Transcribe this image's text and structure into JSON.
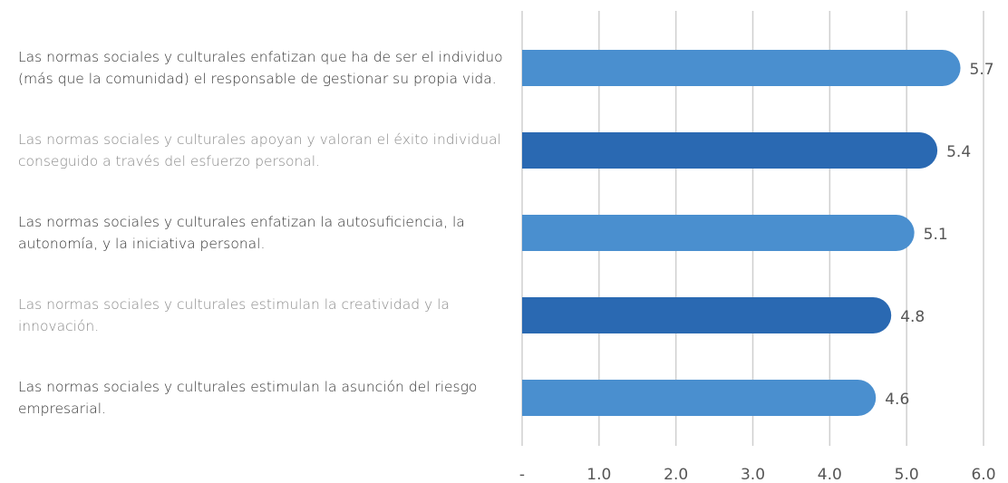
{
  "chart_data": {
    "type": "bar",
    "orientation": "horizontal",
    "categories": [
      "Las normas sociales y culturales enfatizan que ha de ser el individuo (más que la comunidad) el responsable de gestionar su propia vida.",
      "Las normas sociales y culturales apoyan y valoran el éxito individual conseguido a través del esfuerzo personal.",
      "Las normas sociales y culturales enfatizan la autosuficiencia, la autonomía, y la iniciativa personal.",
      "Las normas sociales y culturales estimulan la creatividad y la innovación.",
      "Las normas sociales y culturales estimulan la asunción del riesgo empresarial."
    ],
    "values": [
      5.7,
      5.4,
      5.1,
      4.8,
      4.6
    ],
    "colors": [
      "#4a8fcf",
      "#2a69b2",
      "#4a8fcf",
      "#2a69b2",
      "#4a8fcf"
    ],
    "label_colors": [
      "#333333",
      "#8a8a8a",
      "#333333",
      "#8a8a8a",
      "#333333"
    ],
    "xlim": [
      0,
      6
    ],
    "xticks": [
      {
        "value": 0,
        "label": "-"
      },
      {
        "value": 1,
        "label": "1.0"
      },
      {
        "value": 2,
        "label": "2.0"
      },
      {
        "value": 3,
        "label": "3.0"
      },
      {
        "value": 4,
        "label": "4.0"
      },
      {
        "value": 5,
        "label": "5.0"
      },
      {
        "value": 6,
        "label": "6.0"
      }
    ],
    "grid": true
  }
}
